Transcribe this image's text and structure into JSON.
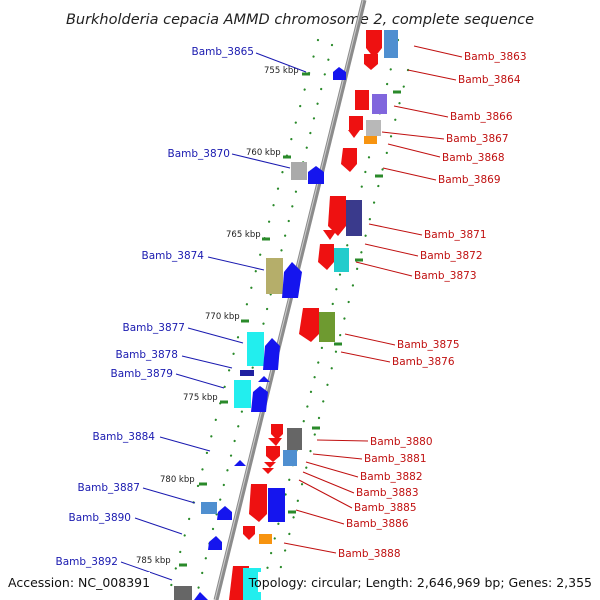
{
  "title": "Burkholderia cepacia AMMD chromosome 2, complete sequence",
  "footer": {
    "accession": "Accession: NC_008391",
    "info": "Topology: circular; Length: 2,646,969 bp; Genes: 2,355"
  },
  "ticks": [
    "755 kbp",
    "760 kbp",
    "765 kbp",
    "770 kbp",
    "775 kbp",
    "780 kbp",
    "785 kbp"
  ],
  "left_labels": [
    "Bamb_3865",
    "Bamb_3870",
    "Bamb_3874",
    "Bamb_3877",
    "Bamb_3878",
    "Bamb_3879",
    "Bamb_3884",
    "Bamb_3887",
    "Bamb_3890",
    "Bamb_3892"
  ],
  "right_labels": [
    "Bamb_3863",
    "Bamb_3864",
    "Bamb_3866",
    "Bamb_3867",
    "Bamb_3868",
    "Bamb_3869",
    "Bamb_3871",
    "Bamb_3872",
    "Bamb_3873",
    "Bamb_3875",
    "Bamb_3876",
    "Bamb_3880",
    "Bamb_3881",
    "Bamb_3882",
    "Bamb_3883",
    "Bamb_3885",
    "Bamb_3886",
    "Bamb_3888"
  ],
  "colors": {
    "backbone": "#8c8c8c",
    "forward_strand": "#ee1111",
    "reverse_strand": "#1515ee",
    "left_label": "#1a1ab0",
    "right_label": "#c01010",
    "dots": "#2a8a2a"
  }
}
